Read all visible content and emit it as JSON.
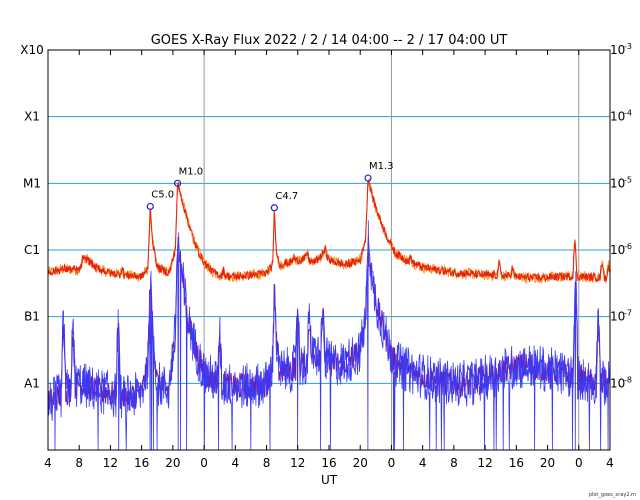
{
  "chart_data": {
    "type": "line",
    "title": "GOES X-Ray Flux   2022 /  2 / 14   04:00 --  2 / 17   04:00   UT",
    "xlabel": "UT",
    "ylabel": "",
    "x_range_hours": [
      0,
      72
    ],
    "x_ticks": [
      {
        "h": 0,
        "label": "4"
      },
      {
        "h": 4,
        "label": "8"
      },
      {
        "h": 8,
        "label": "12"
      },
      {
        "h": 12,
        "label": "16"
      },
      {
        "h": 16,
        "label": "20"
      },
      {
        "h": 20,
        "label": "0"
      },
      {
        "h": 24,
        "label": "4"
      },
      {
        "h": 28,
        "label": "8"
      },
      {
        "h": 32,
        "label": "12"
      },
      {
        "h": 36,
        "label": "16"
      },
      {
        "h": 40,
        "label": "20"
      },
      {
        "h": 44,
        "label": "0"
      },
      {
        "h": 48,
        "label": "4"
      },
      {
        "h": 52,
        "label": "8"
      },
      {
        "h": 56,
        "label": "12"
      },
      {
        "h": 60,
        "label": "16"
      },
      {
        "h": 64,
        "label": "20"
      },
      {
        "h": 68,
        "label": "0"
      },
      {
        "h": 72,
        "label": "4"
      }
    ],
    "day_boundaries_hours": [
      20,
      44,
      68
    ],
    "y_scale": "log",
    "y_range_exp": [
      -9,
      -3
    ],
    "left_class_labels": [
      {
        "exp": -3,
        "label": "X10"
      },
      {
        "exp": -4,
        "label": "X1"
      },
      {
        "exp": -5,
        "label": "M1"
      },
      {
        "exp": -6,
        "label": "C1"
      },
      {
        "exp": -7,
        "label": "B1"
      },
      {
        "exp": -8,
        "label": "A1"
      }
    ],
    "right_labels": [
      {
        "exp": -3,
        "base": "10",
        "sup": "-3"
      },
      {
        "exp": -4,
        "base": "10",
        "sup": "-4"
      },
      {
        "exp": -5,
        "base": "10",
        "sup": "-5"
      },
      {
        "exp": -6,
        "base": "10",
        "sup": "-6"
      },
      {
        "exp": -7,
        "base": "10",
        "sup": "-7"
      },
      {
        "exp": -8,
        "base": "10",
        "sup": "-8"
      }
    ],
    "flares": [
      {
        "t": 13.1,
        "flux": 4.5e-06,
        "label": "C5.0"
      },
      {
        "t": 16.6,
        "flux": 1e-05,
        "label": "M1.0"
      },
      {
        "t": 29.0,
        "flux": 4.3e-06,
        "label": "C4.7"
      },
      {
        "t": 41.0,
        "flux": 1.2e-05,
        "label": "M1.3"
      }
    ],
    "series": [
      {
        "color": "#e8200e",
        "orange_color": "#f59a2a",
        "base": [
          [
            0,
            4.6e-07
          ],
          [
            2,
            5.2e-07
          ],
          [
            4,
            5e-07
          ],
          [
            5,
            7.5e-07
          ],
          [
            6,
            5.5e-07
          ],
          [
            8,
            4.5e-07
          ],
          [
            10,
            4.2e-07
          ],
          [
            12,
            4e-07
          ],
          [
            12.8,
            5.2e-07
          ],
          [
            13.1,
            4.5e-06
          ],
          [
            13.4,
            1.3e-06
          ],
          [
            14,
            5.5e-07
          ],
          [
            15.5,
            4.5e-07
          ],
          [
            16.3,
            1e-06
          ],
          [
            16.6,
            1e-05
          ],
          [
            17.2,
            5.5e-06
          ],
          [
            18,
            2.5e-06
          ],
          [
            19,
            1.1e-06
          ],
          [
            20,
            6.5e-07
          ],
          [
            21,
            4.8e-07
          ],
          [
            22,
            4.2e-07
          ],
          [
            24,
            4e-07
          ],
          [
            26,
            4.2e-07
          ],
          [
            28,
            4.5e-07
          ],
          [
            28.8,
            6e-07
          ],
          [
            29.0,
            4.3e-06
          ],
          [
            29.2,
            1.2e-06
          ],
          [
            29.6,
            6e-07
          ],
          [
            31,
            6.5e-07
          ],
          [
            33,
            7.5e-07
          ],
          [
            34,
            6.5e-07
          ],
          [
            35,
            8e-07
          ],
          [
            35.5,
            1e-06
          ],
          [
            36,
            7e-07
          ],
          [
            37,
            6.5e-07
          ],
          [
            38,
            6e-07
          ],
          [
            40,
            7e-07
          ],
          [
            40.7,
            1.5e-06
          ],
          [
            41.0,
            1.2e-05
          ],
          [
            41.6,
            6e-06
          ],
          [
            42.5,
            3e-06
          ],
          [
            43.5,
            1.5e-06
          ],
          [
            44.5,
            9e-07
          ],
          [
            46,
            7e-07
          ],
          [
            48,
            5.5e-07
          ],
          [
            50,
            5e-07
          ],
          [
            52,
            4.6e-07
          ],
          [
            54,
            4.4e-07
          ],
          [
            56,
            4.2e-07
          ],
          [
            58,
            4.2e-07
          ],
          [
            60,
            4e-07
          ],
          [
            62,
            3.8e-07
          ],
          [
            64,
            3.9e-07
          ],
          [
            66,
            4e-07
          ],
          [
            68,
            4e-07
          ],
          [
            70,
            3.9e-07
          ],
          [
            72,
            3.8e-07
          ]
        ],
        "spikes": [
          [
            4.5,
            8e-07
          ],
          [
            9.5,
            5.5e-07
          ],
          [
            22.5,
            5e-07
          ],
          [
            31.5,
            8e-07
          ],
          [
            33.2,
            9e-07
          ],
          [
            46.5,
            8e-07
          ],
          [
            57.8,
            6.5e-07
          ],
          [
            59.5,
            5.5e-07
          ],
          [
            67.5,
            1.3e-06
          ],
          [
            71.0,
            7e-07
          ],
          [
            71.8,
            6e-07
          ]
        ],
        "noise": 0.06
      },
      {
        "color": "#3b3bf5",
        "purple_color": "#6a1fb0",
        "base": [
          [
            0,
            5e-09
          ],
          [
            2,
            7e-09
          ],
          [
            4,
            1e-08
          ],
          [
            6,
            8e-09
          ],
          [
            8,
            7e-09
          ],
          [
            10,
            6e-09
          ],
          [
            12,
            7e-09
          ],
          [
            12.8,
            2e-08
          ],
          [
            13.1,
            4e-07
          ],
          [
            13.5,
            5e-08
          ],
          [
            14,
            1e-08
          ],
          [
            15.5,
            8e-09
          ],
          [
            16.3,
            6e-08
          ],
          [
            16.6,
            1.5e-06
          ],
          [
            17.2,
            4e-07
          ],
          [
            18,
            8e-08
          ],
          [
            19,
            3e-08
          ],
          [
            20,
            1.4e-08
          ],
          [
            21,
            1.2e-08
          ],
          [
            22,
            1e-08
          ],
          [
            24,
            9e-09
          ],
          [
            26,
            9e-09
          ],
          [
            28,
            1e-08
          ],
          [
            28.8,
            2e-08
          ],
          [
            29.0,
            3.5e-07
          ],
          [
            29.2,
            5e-08
          ],
          [
            29.6,
            1.5e-08
          ],
          [
            31,
            1.6e-08
          ],
          [
            33,
            2e-08
          ],
          [
            35,
            3e-08
          ],
          [
            36,
            2e-08
          ],
          [
            38,
            2e-08
          ],
          [
            40,
            3e-08
          ],
          [
            40.7,
            1e-07
          ],
          [
            41.0,
            1.5e-06
          ],
          [
            41.6,
            3e-07
          ],
          [
            42.5,
            1e-07
          ],
          [
            43.5,
            4e-08
          ],
          [
            44.5,
            2e-08
          ],
          [
            46,
            1.6e-08
          ],
          [
            48,
            1.3e-08
          ],
          [
            50,
            1.1e-08
          ],
          [
            52,
            1e-08
          ],
          [
            54,
            1e-08
          ],
          [
            56,
            1.2e-08
          ],
          [
            58,
            1.5e-08
          ],
          [
            60,
            1.8e-08
          ],
          [
            62,
            1.8e-08
          ],
          [
            64,
            1.6e-08
          ],
          [
            66,
            1.4e-08
          ],
          [
            68,
            1.2e-08
          ],
          [
            70,
            1e-08
          ],
          [
            72,
            1e-08
          ]
        ],
        "spikes": [
          [
            2.0,
            8e-08
          ],
          [
            3.2,
            6e-08
          ],
          [
            9.0,
            7e-08
          ],
          [
            22.0,
            5e-08
          ],
          [
            32.0,
            1.2e-07
          ],
          [
            33.5,
            1e-07
          ],
          [
            35.2,
            1.1e-07
          ],
          [
            67.6,
            2.5e-07
          ],
          [
            70.5,
            9e-08
          ]
        ],
        "noise": 0.35
      }
    ]
  },
  "credit": "plot_goes_xray2.m",
  "colors": {
    "grid_h": "#2aa0d8",
    "grid_v": "#9a9a9a",
    "frame": "#000000",
    "flare_marker": "#2020d0"
  }
}
